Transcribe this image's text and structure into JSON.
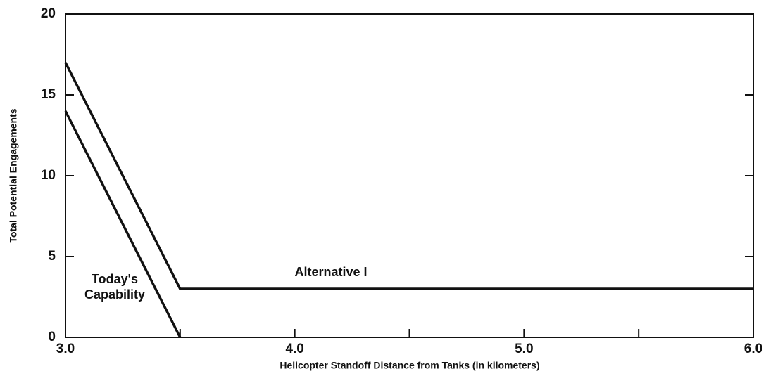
{
  "chart_data": {
    "type": "line",
    "xlabel": "Helicopter Standoff Distance from Tanks (in kilometers)",
    "ylabel": "Total Potential Engagements",
    "xlim": [
      3,
      6
    ],
    "ylim": [
      0,
      20
    ],
    "xticks": [
      {
        "value": 3,
        "label": "3.0"
      },
      {
        "value": 4,
        "label": "4.0"
      },
      {
        "value": 5,
        "label": "5.0"
      },
      {
        "value": 6,
        "label": "6.0"
      }
    ],
    "xminor_ticks": [
      3.5,
      4.5,
      5.5
    ],
    "yticks": [
      0,
      5,
      10,
      15,
      20
    ],
    "color": "#111111",
    "series": [
      {
        "name": "Alternative I",
        "x": [
          3.0,
          3.5,
          6.0
        ],
        "values": [
          17,
          3,
          3
        ]
      },
      {
        "name": "Today's Capability",
        "x": [
          3.0,
          3.5
        ],
        "values": [
          14,
          0
        ]
      }
    ]
  }
}
